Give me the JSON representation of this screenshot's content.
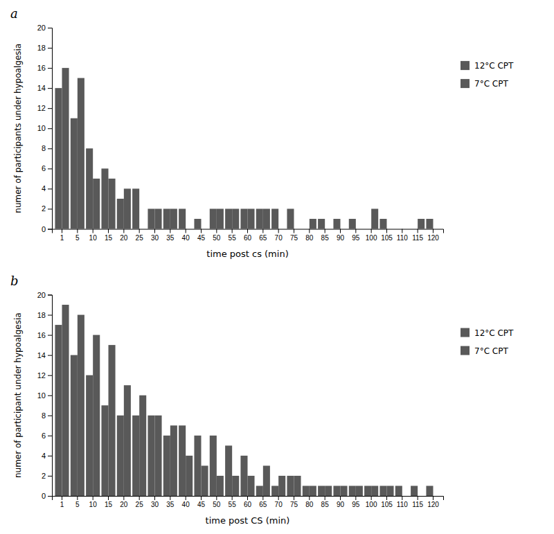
{
  "chart_data": [
    {
      "type": "bar",
      "title": "a",
      "categories": [
        "1",
        "5",
        "10",
        "15",
        "20",
        "25",
        "30",
        "35",
        "40",
        "45",
        "50",
        "55",
        "60",
        "65",
        "70",
        "75",
        "80",
        "85",
        "90",
        "95",
        "100",
        "105",
        "110",
        "115",
        "120"
      ],
      "series": [
        {
          "name": "12°C CPT",
          "color": "#595959",
          "values": [
            14,
            11,
            8,
            6,
            3,
            4,
            2,
            2,
            2,
            1,
            2,
            2,
            2,
            2,
            2,
            2,
            0,
            1,
            1,
            1,
            0,
            1,
            0,
            0,
            1
          ]
        },
        {
          "name": "7°C CPT",
          "color": "#595959",
          "values": [
            16,
            15,
            5,
            5,
            4,
            0,
            2,
            2,
            0,
            0,
            2,
            2,
            2,
            2,
            0,
            0,
            1,
            0,
            0,
            0,
            2,
            0,
            0,
            1,
            0
          ]
        }
      ],
      "xlabel": "time post cs (min)",
      "ylabel": "numer of participants under hypoalgesia",
      "ylim": [
        0,
        20
      ],
      "yticks": [
        0,
        2,
        4,
        6,
        8,
        10,
        12,
        14,
        16,
        18,
        20
      ],
      "legend": "right"
    },
    {
      "type": "bar",
      "title": "b",
      "categories": [
        "1",
        "5",
        "10",
        "15",
        "20",
        "25",
        "30",
        "35",
        "40",
        "45",
        "50",
        "55",
        "60",
        "65",
        "70",
        "75",
        "80",
        "85",
        "90",
        "95",
        "100",
        "105",
        "110",
        "115",
        "120"
      ],
      "series": [
        {
          "name": "12°C CPT",
          "color": "#595959",
          "values": [
            17,
            14,
            12,
            9,
            8,
            8,
            8,
            6,
            7,
            6,
            6,
            5,
            4,
            1,
            1,
            2,
            1,
            1,
            1,
            1,
            1,
            1,
            1,
            1,
            1
          ]
        },
        {
          "name": "7°C CPT",
          "color": "#595959",
          "values": [
            19,
            18,
            16,
            15,
            11,
            10,
            8,
            7,
            4,
            3,
            2,
            2,
            2,
            3,
            2,
            2,
            1,
            1,
            1,
            1,
            1,
            1,
            0,
            0,
            0
          ]
        }
      ],
      "xlabel": "time post CS (min)",
      "ylabel": "numer of participant under hypoalgesia",
      "ylim": [
        0,
        20
      ],
      "yticks": [
        0,
        2,
        4,
        6,
        8,
        10,
        12,
        14,
        16,
        18,
        20
      ],
      "legend": "right"
    }
  ]
}
